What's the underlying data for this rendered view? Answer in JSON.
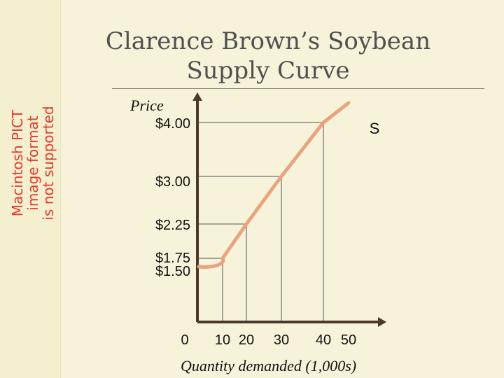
{
  "slide": {
    "title": "Clarence Brown’s Soybean\nSupply Curve",
    "placeholder_text": "Macintosh PICT\nimage format\nis not supported"
  },
  "chart_data": {
    "type": "line",
    "title": "Clarence Brown’s Soybean Supply Curve",
    "ylabel": "Price",
    "xlabel": "Quantity demanded (1,000s)",
    "series": [
      {
        "name": "S",
        "points": [
          {
            "x": 0,
            "y": 1.5
          },
          {
            "x": 10,
            "y": 1.75
          },
          {
            "x": 20,
            "y": 2.25
          },
          {
            "x": 30,
            "y": 3.0
          },
          {
            "x": 40,
            "y": 4.0
          },
          {
            "x": 50,
            "y": 4.75
          }
        ]
      }
    ],
    "guide_points": [
      {
        "x": 10,
        "y": 1.75
      },
      {
        "x": 20,
        "y": 2.25
      },
      {
        "x": 30,
        "y": 3.0
      },
      {
        "x": 40,
        "y": 4.0
      }
    ],
    "x_ticks": [
      {
        "value": 0,
        "label": "0"
      },
      {
        "value": 10,
        "label": "10"
      },
      {
        "value": 20,
        "label": "20"
      },
      {
        "value": 30,
        "label": "30"
      },
      {
        "value": 40,
        "label": "40"
      },
      {
        "value": 50,
        "label": "50"
      }
    ],
    "y_ticks": [
      {
        "value": 1.5,
        "label": "$1.50"
      },
      {
        "value": 1.75,
        "label": "$1.75"
      },
      {
        "value": 2.25,
        "label": "$2.25"
      },
      {
        "value": 3.0,
        "label": "$3.00"
      },
      {
        "value": 4.0,
        "label": "$4.00"
      }
    ],
    "xlim": [
      0,
      55
    ],
    "ylim": [
      0,
      4.8
    ],
    "grid": false,
    "legend": "none"
  },
  "colors": {
    "background": "#f7f3da",
    "axis": "#4b3a28",
    "curve": "#e8a47e",
    "guides": "#555555",
    "placeholder": "#e23b2f"
  }
}
